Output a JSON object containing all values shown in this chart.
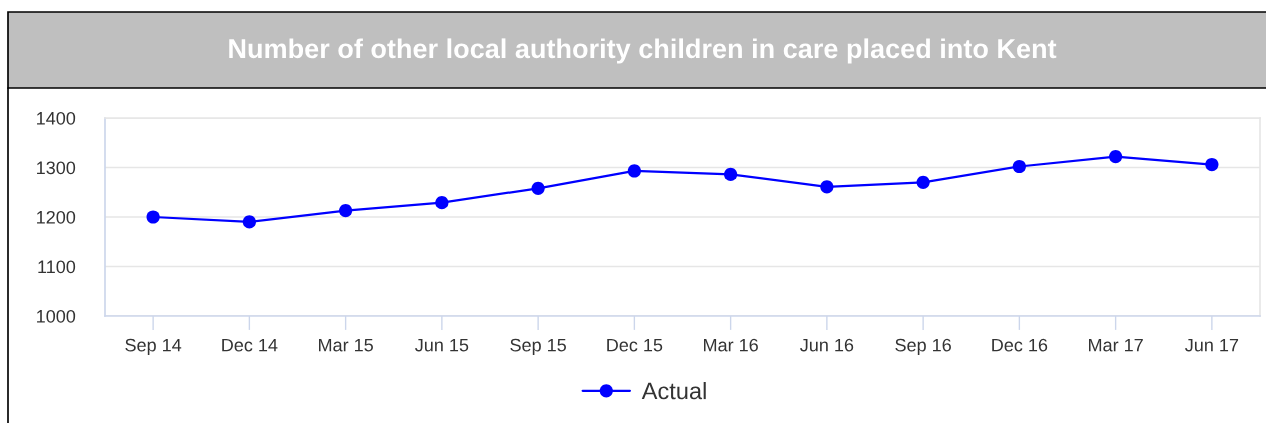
{
  "chart_data": {
    "type": "line",
    "title": "Number of other local authority children in care placed into Kent",
    "categories": [
      "Sep 14",
      "Dec 14",
      "Mar 15",
      "Jun 15",
      "Sep 15",
      "Dec 15",
      "Mar 16",
      "Jun 16",
      "Sep 16",
      "Dec 16",
      "Mar 17",
      "Jun 17"
    ],
    "series": [
      {
        "name": "Actual",
        "color": "#0000ff",
        "values": [
          1200,
          1190,
          1213,
          1229,
          1258,
          1293,
          1286,
          1261,
          1270,
          1302,
          1322,
          1306
        ]
      }
    ],
    "ylim": [
      1000,
      1400
    ],
    "yticks": [
      1000,
      1100,
      1200,
      1300,
      1400
    ],
    "grid": "y",
    "legend": "bottom",
    "marker": "circle",
    "line_style": "solid"
  }
}
